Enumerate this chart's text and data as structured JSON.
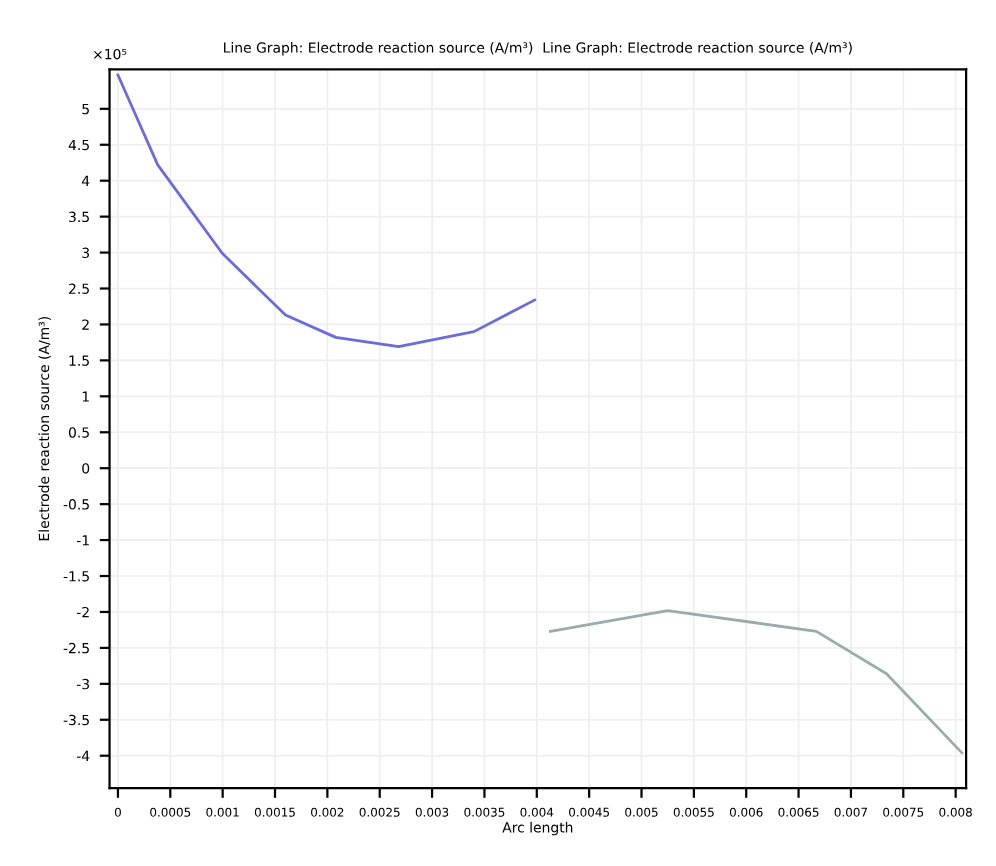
{
  "chart_data": {
    "type": "line",
    "title": "Line Graph: Electrode reaction source (A/m³)  Line Graph: Electrode reaction source (A/m³)",
    "xlabel": "Arc length",
    "ylabel": "Electrode reaction source (A/m³)",
    "annotations": [
      "×10⁵"
    ],
    "series": [
      {
        "color": "#6b6bdc",
        "x": [
          0,
          0.00038,
          0.000996,
          0.0016,
          0.00208,
          0.00268,
          0.0034,
          0.00398
        ],
        "values": [
          5.47,
          4.22,
          2.99,
          2.13,
          1.82,
          1.69,
          1.9,
          2.34
        ]
      },
      {
        "color": "#9aabab",
        "x": [
          0.00413,
          0.00525,
          0.00667,
          0.00734,
          0.00806
        ],
        "values": [
          -2.27,
          -1.98,
          -2.27,
          -2.86,
          -3.96
        ]
      }
    ],
    "xlim": [
      -8e-05,
      0.0081
    ],
    "ylim": [
      -4.45,
      5.55
    ],
    "xticks": [
      0,
      0.0005,
      0.001,
      0.0015,
      0.002,
      0.0025,
      0.003,
      0.0035,
      0.004,
      0.0045,
      0.005,
      0.0055,
      0.006,
      0.0065,
      0.007,
      0.0075,
      0.008
    ],
    "yticks": [
      -4,
      -3.5,
      -3,
      -2.5,
      -2,
      -1.5,
      -1,
      -0.5,
      0,
      0.5,
      1,
      1.5,
      2,
      2.5,
      3,
      3.5,
      4,
      4.5,
      5
    ],
    "grid": true,
    "line_style": "solid"
  }
}
